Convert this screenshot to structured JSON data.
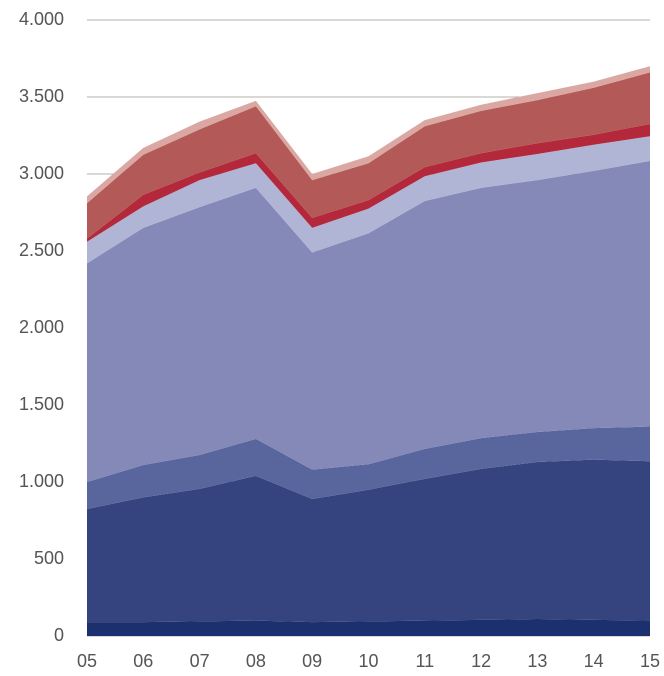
{
  "chart_data": {
    "type": "stacked_area",
    "categories": [
      "05",
      "06",
      "07",
      "08",
      "09",
      "10",
      "11",
      "12",
      "13",
      "14",
      "15"
    ],
    "series": [
      {
        "color": "#1c2f6e",
        "values": [
          90,
          90,
          95,
          100,
          90,
          95,
          100,
          105,
          110,
          105,
          100
        ]
      },
      {
        "color": "#35447e",
        "values": [
          735,
          810,
          860,
          940,
          800,
          855,
          920,
          980,
          1020,
          1040,
          1035
        ]
      },
      {
        "color": "#59669e",
        "values": [
          175,
          210,
          220,
          240,
          190,
          165,
          195,
          200,
          195,
          205,
          225
        ]
      },
      {
        "color": "#8489b8",
        "values": [
          1420,
          1540,
          1610,
          1630,
          1410,
          1500,
          1610,
          1625,
          1635,
          1670,
          1725
        ]
      },
      {
        "color": "#b0b5d6",
        "values": [
          140,
          140,
          175,
          160,
          160,
          160,
          160,
          165,
          170,
          170,
          160
        ]
      },
      {
        "color": "#b3283a",
        "values": [
          20,
          75,
          50,
          65,
          65,
          55,
          60,
          60,
          70,
          65,
          80
        ]
      },
      {
        "color": "#b35957",
        "values": [
          230,
          260,
          280,
          305,
          245,
          240,
          265,
          275,
          280,
          305,
          335
        ]
      },
      {
        "color": "#dba7a2",
        "values": [
          45,
          45,
          50,
          35,
          40,
          45,
          40,
          40,
          45,
          40,
          40
        ]
      }
    ],
    "ylim": [
      0,
      4000
    ],
    "yticks": [
      0,
      500,
      {
        "value": 1000,
        "label": "1.000"
      },
      {
        "value": 1500,
        "label": "1.500"
      },
      {
        "value": 2000,
        "label": "2.000"
      },
      {
        "value": 2500,
        "label": "2.500"
      },
      {
        "value": 3000,
        "label": "3.000"
      },
      {
        "value": 3500,
        "label": "3.500"
      },
      {
        "value": 4000,
        "label": "4.000"
      }
    ],
    "grid": true
  }
}
